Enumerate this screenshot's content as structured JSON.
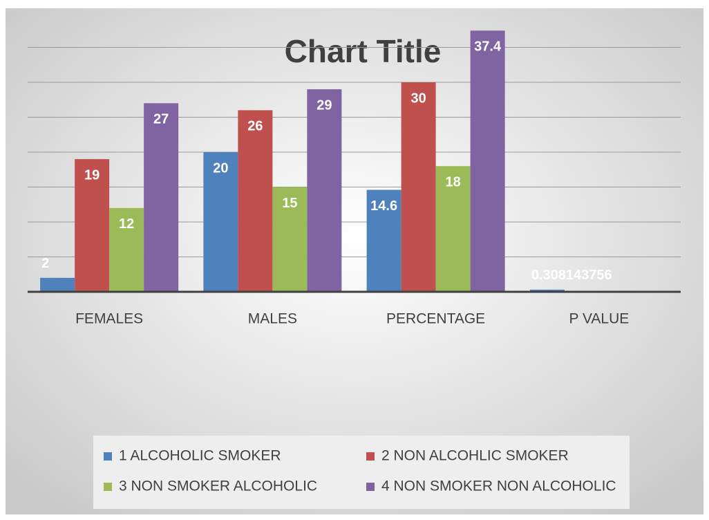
{
  "chart_data": {
    "type": "bar",
    "title": "Chart Title",
    "categories": [
      "FEMALES",
      "MALES",
      "PERCENTAGE",
      "P VALUE"
    ],
    "series": [
      {
        "name": "1 ALCOHOLIC SMOKER",
        "color": "#4f81bd",
        "values": [
          2,
          20,
          14.6,
          0.308143756
        ]
      },
      {
        "name": "2 NON ALCOHLIC SMOKER",
        "color": "#c0504d",
        "values": [
          19,
          26,
          30,
          null
        ]
      },
      {
        "name": "3 NON SMOKER ALCOHOLIC",
        "color": "#9bbb59",
        "values": [
          12,
          15,
          18,
          null
        ]
      },
      {
        "name": "4 NON SMOKER NON ALCOHOLIC",
        "color": "#8064a2",
        "values": [
          27,
          29,
          37.4,
          null
        ]
      }
    ],
    "ylim": [
      0,
      40
    ],
    "yticks": [
      0,
      5,
      10,
      15,
      20,
      25,
      30,
      35
    ],
    "grid": true,
    "legend": "bottom"
  }
}
